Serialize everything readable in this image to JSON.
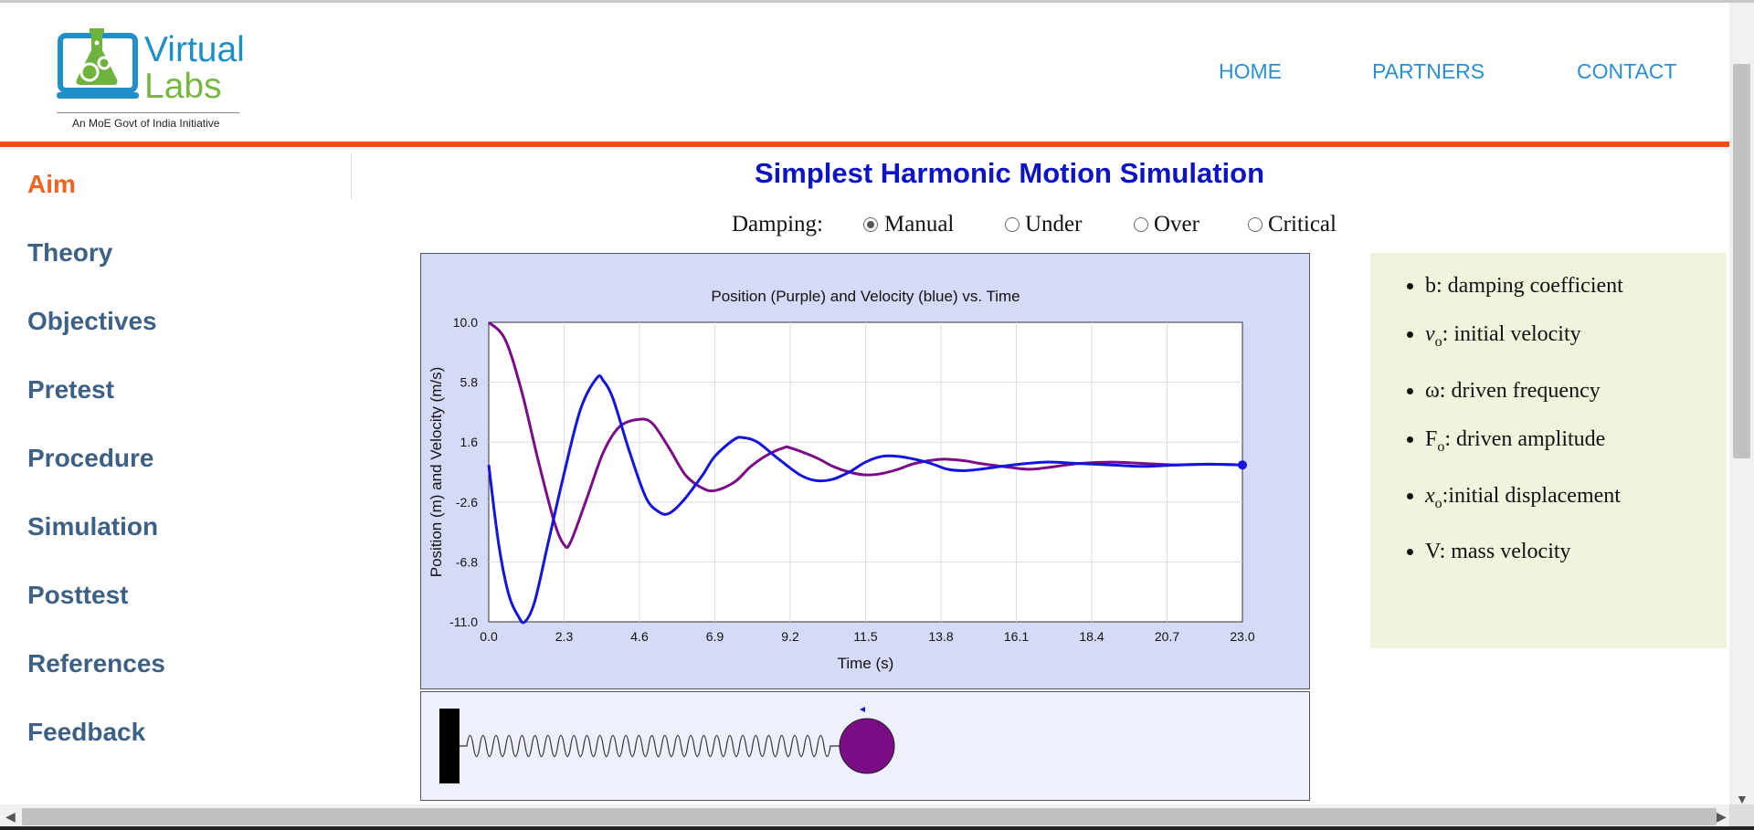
{
  "logo": {
    "line1": "Virtual",
    "line2": "Labs",
    "tagline": "An MoE Govt of India Initiative"
  },
  "nav": {
    "home": "HOME",
    "partners": "PARTNERS",
    "contact": "CONTACT"
  },
  "sidebar": {
    "items": [
      {
        "label": "Aim",
        "active": true
      },
      {
        "label": "Theory"
      },
      {
        "label": "Objectives"
      },
      {
        "label": "Pretest"
      },
      {
        "label": "Procedure"
      },
      {
        "label": "Simulation"
      },
      {
        "label": "Posttest"
      },
      {
        "label": "References"
      },
      {
        "label": "Feedback"
      }
    ]
  },
  "main": {
    "title": "Simplest Harmonic Motion Simulation",
    "damping_label": "Damping:",
    "damping_options": [
      {
        "label": "Manual",
        "checked": true
      },
      {
        "label": "Under"
      },
      {
        "label": "Over"
      },
      {
        "label": "Critical"
      }
    ]
  },
  "info": {
    "items": [
      {
        "sym": "b",
        "sub": "",
        "text": ": damping coefficient"
      },
      {
        "sym": "v",
        "sub": "o",
        "text": ": initial velocity"
      },
      {
        "sym": "ω",
        "sub": "",
        "text": ": driven frequency"
      },
      {
        "sym": "F",
        "sub": "o",
        "text": ": driven amplitude"
      },
      {
        "sym": "x",
        "sub": "o",
        "text": ":initial displacement"
      },
      {
        "sym": "V",
        "sub": "",
        "text": ": mass velocity"
      }
    ]
  },
  "colors": {
    "accent_orange": "#fb4b12",
    "title_blue": "#0c14c6",
    "position_line": "#7a0c86",
    "velocity_line": "#1414e0",
    "mass": "#7a0c86"
  },
  "chart_data": {
    "type": "line",
    "title": "Position (Purple) and Velocity (blue) vs. Time",
    "xlabel": "Time (s)",
    "ylabel": "Position (m) and Velocity (m/s)",
    "xlim": [
      0,
      23
    ],
    "ylim": [
      -11,
      10
    ],
    "x_ticks": [
      "0.0",
      "2.3",
      "4.6",
      "6.9",
      "9.2",
      "11.5",
      "13.8",
      "16.1",
      "18.4",
      "20.7",
      "23.0"
    ],
    "y_ticks": [
      "10.0",
      "5.8",
      "1.6",
      "-2.6",
      "-6.8",
      "-11.0"
    ],
    "grid": true,
    "series": [
      {
        "name": "Position",
        "x": [
          0,
          0.5,
          1,
          1.5,
          2,
          2.3,
          2.5,
          3,
          3.5,
          4,
          4.6,
          5,
          5.5,
          6,
          6.5,
          6.9,
          7.5,
          8,
          8.5,
          9,
          9.2,
          10,
          10.5,
          11,
          11.5,
          12,
          12.5,
          13,
          13.8,
          14.5,
          15,
          16,
          16.5,
          17,
          18,
          19,
          20,
          21,
          22,
          23
        ],
        "values": [
          10,
          8.8,
          5.2,
          0.4,
          -4.0,
          -5.6,
          -5.4,
          -2.3,
          0.9,
          2.7,
          3.2,
          2.9,
          1.2,
          -0.7,
          -1.6,
          -1.8,
          -1.2,
          -0.1,
          0.7,
          1.2,
          1.2,
          0.5,
          -0.1,
          -0.5,
          -0.7,
          -0.6,
          -0.3,
          0.1,
          0.4,
          0.3,
          0.1,
          -0.2,
          -0.3,
          -0.2,
          0.1,
          0.2,
          0.1,
          0.0,
          0.05,
          0.0
        ]
      },
      {
        "name": "Velocity",
        "x": [
          0,
          0.3,
          0.6,
          0.9,
          1.1,
          1.4,
          1.8,
          2.3,
          2.8,
          3.3,
          3.5,
          3.8,
          4.3,
          4.8,
          5.2,
          5.5,
          5.9,
          6.5,
          6.9,
          7.5,
          7.8,
          8.2,
          8.8,
          9.5,
          10,
          10.5,
          11,
          11.5,
          12,
          12.5,
          13,
          13.5,
          14,
          14.5,
          15,
          16,
          17,
          18,
          19,
          20,
          21,
          22,
          23
        ],
        "values": [
          0,
          -5.5,
          -9.0,
          -10.6,
          -11.0,
          -9.6,
          -5.6,
          -0.6,
          3.9,
          6.1,
          5.9,
          4.6,
          0.9,
          -2.3,
          -3.3,
          -3.4,
          -2.6,
          -0.8,
          0.6,
          1.8,
          1.9,
          1.6,
          0.5,
          -0.7,
          -1.1,
          -1.0,
          -0.5,
          0.2,
          0.6,
          0.6,
          0.4,
          0.1,
          -0.3,
          -0.4,
          -0.3,
          0.0,
          0.2,
          0.1,
          0.0,
          -0.1,
          0.0,
          0.05,
          0.0
        ]
      }
    ]
  }
}
